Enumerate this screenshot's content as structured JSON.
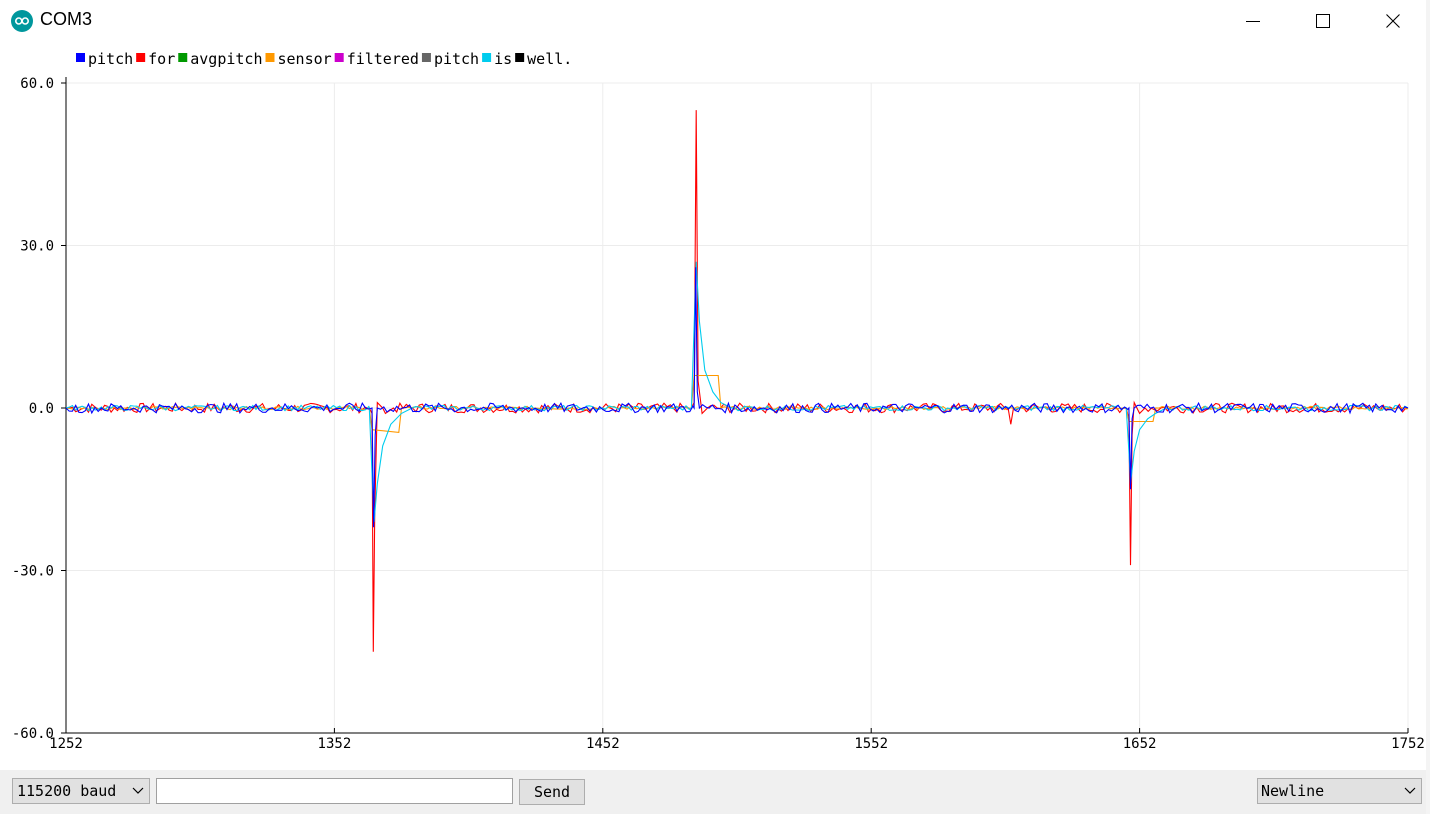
{
  "window": {
    "title": "COM3",
    "icon": "arduino-logo-icon",
    "controls": [
      "minimize-icon",
      "maximize-icon",
      "close-icon"
    ]
  },
  "bottom_bar": {
    "baud_rate": "115200 baud",
    "message_input_value": "",
    "send_label": "Send",
    "line_ending": "Newline"
  },
  "colors": {
    "pitch": "#0000ff",
    "for": "#ff0000",
    "avgpitch": "#009900",
    "sensor": "#ff9900",
    "filtered": "#cc00cc",
    "pitch_2": "#666666",
    "is": "#00ccee",
    "well.": "#000000"
  },
  "chart_data": {
    "type": "line",
    "title": "",
    "legend": [
      "pitch",
      "for",
      "avgpitch",
      "sensor",
      "filtered",
      "pitch",
      "is",
      "well."
    ],
    "legend_placement": "top-left",
    "xlim": [
      1252,
      1752
    ],
    "ylim": [
      -60,
      60
    ],
    "x_ticks": [
      "1252",
      "1352",
      "1452",
      "1552",
      "1652",
      "1752"
    ],
    "y_ticks": [
      "60.0",
      "30.0",
      "0.0",
      "-30.0",
      "-60.0"
    ],
    "grid": true,
    "series": [
      {
        "name": "for",
        "color": "#ff0000",
        "points": [
          [
            1252,
            0
          ],
          [
            1365,
            0
          ],
          [
            1366,
            -1
          ],
          [
            1366.5,
            -45
          ],
          [
            1367,
            -20
          ],
          [
            1368,
            1
          ],
          [
            1370,
            0
          ],
          [
            1371,
            -1
          ],
          [
            1374,
            0
          ],
          [
            1485,
            0
          ],
          [
            1486,
            1
          ],
          [
            1486.8,
            55
          ],
          [
            1487.5,
            5
          ],
          [
            1489,
            -1
          ],
          [
            1491,
            0
          ],
          [
            1603,
            0
          ],
          [
            1604,
            -3
          ],
          [
            1605,
            0
          ],
          [
            1647,
            0
          ],
          [
            1648,
            -2
          ],
          [
            1648.6,
            -29
          ],
          [
            1649.2,
            -5
          ],
          [
            1650,
            1
          ],
          [
            1652,
            -1
          ],
          [
            1654,
            0
          ],
          [
            1752,
            0
          ]
        ]
      },
      {
        "name": "sensor",
        "color": "#ff9900",
        "points": [
          [
            1252,
            0
          ],
          [
            1365,
            0
          ],
          [
            1366,
            -4
          ],
          [
            1376,
            -4.5
          ],
          [
            1377,
            0
          ],
          [
            1485,
            0
          ],
          [
            1486,
            6
          ],
          [
            1495,
            6
          ],
          [
            1496,
            0
          ],
          [
            1647,
            0
          ],
          [
            1648,
            -2.5
          ],
          [
            1657,
            -2.5
          ],
          [
            1658,
            0
          ],
          [
            1752,
            0
          ]
        ]
      },
      {
        "name": "is",
        "color": "#00ccee",
        "points": [
          [
            1252,
            0
          ],
          [
            1365,
            0
          ],
          [
            1366,
            -12
          ],
          [
            1366.8,
            -21
          ],
          [
            1368,
            -14
          ],
          [
            1370,
            -7
          ],
          [
            1373,
            -3
          ],
          [
            1377,
            -1
          ],
          [
            1381,
            0
          ],
          [
            1485,
            0
          ],
          [
            1486,
            15
          ],
          [
            1486.8,
            27
          ],
          [
            1488,
            16
          ],
          [
            1490,
            7
          ],
          [
            1493,
            3
          ],
          [
            1496,
            1
          ],
          [
            1500,
            0
          ],
          [
            1647,
            0
          ],
          [
            1648,
            -8
          ],
          [
            1648.6,
            -14
          ],
          [
            1650,
            -8
          ],
          [
            1652,
            -4
          ],
          [
            1655,
            -2
          ],
          [
            1658,
            -1
          ],
          [
            1662,
            0
          ],
          [
            1752,
            0
          ]
        ]
      },
      {
        "name": "pitch",
        "color": "#0000ff",
        "points": [
          [
            1252,
            0
          ],
          [
            1366,
            0
          ],
          [
            1366.6,
            -22
          ],
          [
            1367.2,
            -5
          ],
          [
            1368,
            0
          ],
          [
            1486,
            0
          ],
          [
            1486.6,
            26
          ],
          [
            1487.2,
            3
          ],
          [
            1488,
            0
          ],
          [
            1648,
            0
          ],
          [
            1648.6,
            -15
          ],
          [
            1649.2,
            -2
          ],
          [
            1650,
            0
          ],
          [
            1752,
            0
          ]
        ]
      }
    ]
  }
}
